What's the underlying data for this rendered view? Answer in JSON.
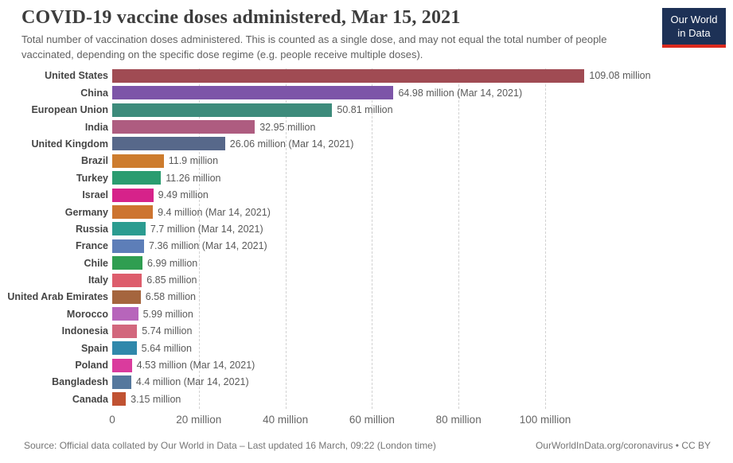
{
  "header": {
    "title": "COVID-19 vaccine doses administered, Mar 15, 2021",
    "subtitle": "Total number of vaccination doses administered. This is counted as a single dose, and may not equal the total number of people vaccinated, depending on the specific dose regime (e.g. people receive multiple doses).",
    "logo": {
      "line1": "Our World",
      "line2": "in Data",
      "bg_color": "#1d3156",
      "accent_color": "#dc2a1e"
    }
  },
  "chart_data": {
    "type": "bar",
    "orientation": "horizontal",
    "title": "COVID-19 vaccine doses administered, Mar 15, 2021",
    "xlabel": "",
    "ylabel": "",
    "unit": "million doses",
    "xlim": [
      0,
      110
    ],
    "grid": true,
    "x_ticks": [
      {
        "value": 0,
        "label": "0"
      },
      {
        "value": 20,
        "label": "20 million"
      },
      {
        "value": 40,
        "label": "40 million"
      },
      {
        "value": 60,
        "label": "60 million"
      },
      {
        "value": 80,
        "label": "80 million"
      },
      {
        "value": 100,
        "label": "100 million"
      }
    ],
    "entities": [
      {
        "name": "United States",
        "value": 109.08,
        "label": "109.08 million",
        "color": "#a04b53"
      },
      {
        "name": "China",
        "value": 64.98,
        "label": "64.98 million (Mar 14, 2021)",
        "color": "#7d55a8"
      },
      {
        "name": "European Union",
        "value": 50.81,
        "label": "50.81 million",
        "color": "#3d8b7b"
      },
      {
        "name": "India",
        "value": 32.95,
        "label": "32.95 million",
        "color": "#ae5c80"
      },
      {
        "name": "United Kingdom",
        "value": 26.06,
        "label": "26.06 million (Mar 14, 2021)",
        "color": "#57688a"
      },
      {
        "name": "Brazil",
        "value": 11.9,
        "label": "11.9 million",
        "color": "#cd7c2e"
      },
      {
        "name": "Turkey",
        "value": 11.26,
        "label": "11.26 million",
        "color": "#2b9c70"
      },
      {
        "name": "Israel",
        "value": 9.49,
        "label": "9.49 million",
        "color": "#d6228a"
      },
      {
        "name": "Germany",
        "value": 9.4,
        "label": "9.4 million (Mar 14, 2021)",
        "color": "#cd7430"
      },
      {
        "name": "Russia",
        "value": 7.7,
        "label": "7.7 million (Mar 14, 2021)",
        "color": "#2b9c90"
      },
      {
        "name": "France",
        "value": 7.36,
        "label": "7.36 million (Mar 14, 2021)",
        "color": "#5d7eb8"
      },
      {
        "name": "Chile",
        "value": 6.99,
        "label": "6.99 million",
        "color": "#2f9e51"
      },
      {
        "name": "Italy",
        "value": 6.85,
        "label": "6.85 million",
        "color": "#dd5d6c"
      },
      {
        "name": "United Arab Emirates",
        "value": 6.58,
        "label": "6.58 million",
        "color": "#a5653e"
      },
      {
        "name": "Morocco",
        "value": 5.99,
        "label": "5.99 million",
        "color": "#b765bb"
      },
      {
        "name": "Indonesia",
        "value": 5.74,
        "label": "5.74 million",
        "color": "#d2677d"
      },
      {
        "name": "Spain",
        "value": 5.64,
        "label": "5.64 million",
        "color": "#3088ab"
      },
      {
        "name": "Poland",
        "value": 4.53,
        "label": "4.53 million (Mar 14, 2021)",
        "color": "#da3b9d"
      },
      {
        "name": "Bangladesh",
        "value": 4.4,
        "label": "4.4 million (Mar 14, 2021)",
        "color": "#55789d"
      },
      {
        "name": "Canada",
        "value": 3.15,
        "label": "3.15 million",
        "color": "#c05232"
      }
    ]
  },
  "footer": {
    "source": "Source: Official data collated by Our World in Data – Last updated 16 March, 09:22 (London time)",
    "link": "OurWorldInData.org/coronavirus • CC BY"
  }
}
